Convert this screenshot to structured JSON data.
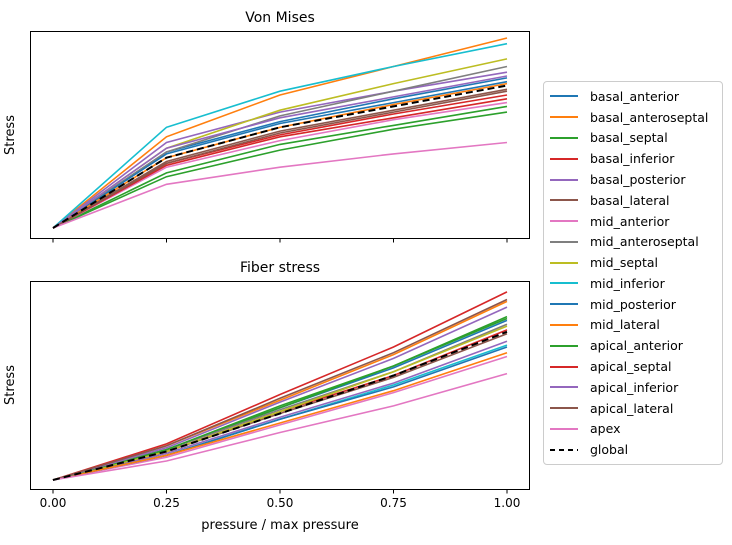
{
  "figure": {
    "background": "#ffffff"
  },
  "chart_data": [
    {
      "type": "line",
      "title": "Von Mises",
      "xlabel": "",
      "ylabel": "Stress",
      "x": [
        0,
        0.25,
        0.5,
        0.75,
        1.0
      ],
      "xlim": [
        -0.05,
        1.05
      ],
      "ylim": [
        0,
        1.04
      ],
      "grid": false,
      "yticklabels": [],
      "note_units": "arbitrary stress units; y tick labels not shown",
      "series": [
        {
          "name": "basal_anterior",
          "color": "#1f77b4",
          "dash": false,
          "values": [
            0,
            0.4,
            0.56,
            0.68,
            0.79
          ]
        },
        {
          "name": "basal_anteroseptal",
          "color": "#ff7f0e",
          "dash": false,
          "values": [
            0,
            0.48,
            0.7,
            0.85,
            1.0
          ]
        },
        {
          "name": "basal_septal",
          "color": "#2ca02c",
          "dash": false,
          "values": [
            0,
            0.29,
            0.44,
            0.54,
            0.64
          ]
        },
        {
          "name": "basal_inferior",
          "color": "#d62728",
          "dash": false,
          "values": [
            0,
            0.34,
            0.49,
            0.6,
            0.7
          ]
        },
        {
          "name": "basal_posterior",
          "color": "#9467bd",
          "dash": false,
          "values": [
            0,
            0.45,
            0.61,
            0.72,
            0.82
          ]
        },
        {
          "name": "basal_lateral",
          "color": "#8c564b",
          "dash": false,
          "values": [
            0,
            0.35,
            0.51,
            0.62,
            0.73
          ]
        },
        {
          "name": "mid_anterior",
          "color": "#e377c2",
          "dash": false,
          "values": [
            0,
            0.32,
            0.46,
            0.57,
            0.66
          ]
        },
        {
          "name": "mid_anteroseptal",
          "color": "#7f7f7f",
          "dash": false,
          "values": [
            0,
            0.4,
            0.59,
            0.72,
            0.85
          ]
        },
        {
          "name": "mid_septal",
          "color": "#bcbd22",
          "dash": false,
          "values": [
            0,
            0.42,
            0.62,
            0.76,
            0.89
          ]
        },
        {
          "name": "mid_inferior",
          "color": "#17becf",
          "dash": false,
          "values": [
            0,
            0.53,
            0.72,
            0.85,
            0.97
          ]
        },
        {
          "name": "mid_posterior",
          "color": "#1f77b4",
          "dash": false,
          "values": [
            0,
            0.39,
            0.55,
            0.66,
            0.77
          ]
        },
        {
          "name": "mid_lateral",
          "color": "#ff7f0e",
          "dash": false,
          "values": [
            0,
            0.37,
            0.53,
            0.65,
            0.76
          ]
        },
        {
          "name": "apical_anterior",
          "color": "#2ca02c",
          "dash": false,
          "values": [
            0,
            0.27,
            0.41,
            0.52,
            0.61
          ]
        },
        {
          "name": "apical_septal",
          "color": "#d62728",
          "dash": false,
          "values": [
            0,
            0.33,
            0.48,
            0.58,
            0.68
          ]
        },
        {
          "name": "apical_inferior",
          "color": "#9467bd",
          "dash": false,
          "values": [
            0,
            0.42,
            0.58,
            0.69,
            0.8
          ]
        },
        {
          "name": "apical_lateral",
          "color": "#8c564b",
          "dash": false,
          "values": [
            0,
            0.34,
            0.5,
            0.61,
            0.72
          ]
        },
        {
          "name": "apex",
          "color": "#e377c2",
          "dash": false,
          "values": [
            0,
            0.23,
            0.32,
            0.39,
            0.45
          ]
        },
        {
          "name": "global",
          "color": "#000000",
          "dash": true,
          "values": [
            0,
            0.37,
            0.53,
            0.64,
            0.75
          ]
        }
      ]
    },
    {
      "type": "line",
      "title": "Fiber stress",
      "xlabel": "pressure / max pressure",
      "ylabel": "Stress",
      "x": [
        0,
        0.25,
        0.5,
        0.75,
        1.0
      ],
      "xlim": [
        -0.05,
        1.05
      ],
      "ylim": [
        0,
        1.05
      ],
      "grid": false,
      "xticklabels": [
        "0.00",
        "0.25",
        "0.50",
        "0.75",
        "1.00"
      ],
      "yticklabels": [],
      "note_units": "arbitrary stress units; y tick labels not shown",
      "series": [
        {
          "name": "basal_anterior",
          "color": "#1f77b4",
          "dash": false,
          "values": [
            0,
            0.16,
            0.38,
            0.59,
            0.84
          ]
        },
        {
          "name": "basal_anteroseptal",
          "color": "#ff7f0e",
          "dash": false,
          "values": [
            0,
            0.18,
            0.42,
            0.66,
            0.94
          ]
        },
        {
          "name": "basal_septal",
          "color": "#2ca02c",
          "dash": false,
          "values": [
            0,
            0.16,
            0.38,
            0.6,
            0.85
          ]
        },
        {
          "name": "basal_inferior",
          "color": "#d62728",
          "dash": false,
          "values": [
            0,
            0.15,
            0.36,
            0.55,
            0.79
          ]
        },
        {
          "name": "basal_posterior",
          "color": "#9467bd",
          "dash": false,
          "values": [
            0,
            0.14,
            0.33,
            0.51,
            0.73
          ]
        },
        {
          "name": "basal_lateral",
          "color": "#8c564b",
          "dash": false,
          "values": [
            0,
            0.15,
            0.35,
            0.54,
            0.77
          ]
        },
        {
          "name": "mid_anterior",
          "color": "#e377c2",
          "dash": false,
          "values": [
            0,
            0.12,
            0.29,
            0.46,
            0.65
          ]
        },
        {
          "name": "mid_anteroseptal",
          "color": "#7f7f7f",
          "dash": false,
          "values": [
            0,
            0.16,
            0.37,
            0.57,
            0.82
          ]
        },
        {
          "name": "mid_septal",
          "color": "#bcbd22",
          "dash": false,
          "values": [
            0,
            0.15,
            0.36,
            0.57,
            0.81
          ]
        },
        {
          "name": "mid_inferior",
          "color": "#17becf",
          "dash": false,
          "values": [
            0,
            0.13,
            0.32,
            0.5,
            0.71
          ]
        },
        {
          "name": "mid_posterior",
          "color": "#1f77b4",
          "dash": false,
          "values": [
            0,
            0.13,
            0.32,
            0.49,
            0.7
          ]
        },
        {
          "name": "mid_lateral",
          "color": "#ff7f0e",
          "dash": false,
          "values": [
            0,
            0.13,
            0.3,
            0.47,
            0.67
          ]
        },
        {
          "name": "apical_anterior",
          "color": "#2ca02c",
          "dash": false,
          "values": [
            0,
            0.16,
            0.39,
            0.6,
            0.86
          ]
        },
        {
          "name": "apical_septal",
          "color": "#d62728",
          "dash": false,
          "values": [
            0,
            0.19,
            0.45,
            0.7,
            0.99
          ]
        },
        {
          "name": "apical_inferior",
          "color": "#9467bd",
          "dash": false,
          "values": [
            0,
            0.17,
            0.41,
            0.64,
            0.91
          ]
        },
        {
          "name": "apical_lateral",
          "color": "#8c564b",
          "dash": false,
          "values": [
            0,
            0.18,
            0.43,
            0.67,
            0.95
          ]
        },
        {
          "name": "apex",
          "color": "#e377c2",
          "dash": false,
          "values": [
            0,
            0.1,
            0.25,
            0.39,
            0.56
          ]
        },
        {
          "name": "global",
          "color": "#000000",
          "dash": true,
          "values": [
            0,
            0.15,
            0.35,
            0.55,
            0.78
          ]
        }
      ]
    }
  ],
  "legend": {
    "position": "outside-right",
    "entries": [
      "basal_anterior",
      "basal_anteroseptal",
      "basal_septal",
      "basal_inferior",
      "basal_posterior",
      "basal_lateral",
      "mid_anterior",
      "mid_anteroseptal",
      "mid_septal",
      "mid_inferior",
      "mid_posterior",
      "mid_lateral",
      "apical_anterior",
      "apical_septal",
      "apical_inferior",
      "apical_lateral",
      "apex",
      "global"
    ]
  }
}
